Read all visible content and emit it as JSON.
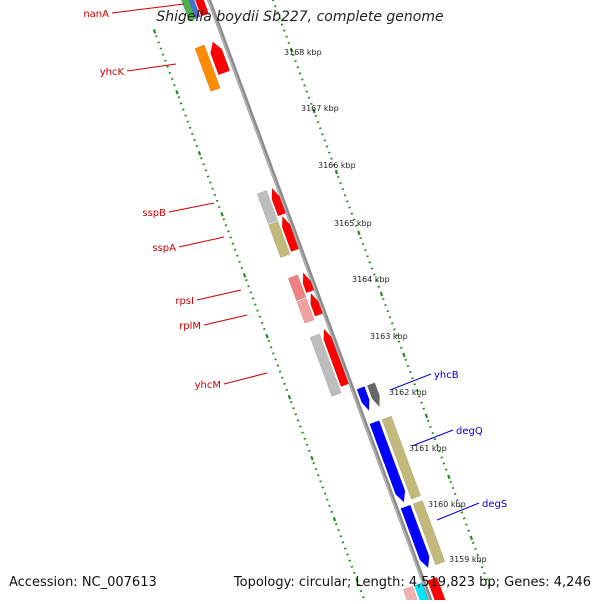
{
  "title": "Shigella boydii Sb227, complete genome",
  "accession": "Accession: NC_007613",
  "summary": "Topology: circular; Length: 4,519,823 bp; Genes: 4,246",
  "colors": {
    "axis": "#8c8c8c",
    "ticks": "#1e8c1e",
    "left_label": "#cc0000",
    "right_label": "#0000cc",
    "red": "#ff0000",
    "orange": "#ff8c00",
    "khaki": "#c2b97a",
    "grey": "#bdbdbd",
    "blue": "#0000ff",
    "darkgrey": "#666666",
    "pink": "#f08080"
  },
  "scale": {
    "unit": "kbp",
    "labels": [
      "3168 kbp",
      "3167 kbp",
      "3166 kbp",
      "3165 kbp",
      "3164 kbp",
      "3163 kbp",
      "3162 kbp",
      "3161 kbp",
      "3160 kbp",
      "3159 kbp"
    ]
  },
  "genes_left": [
    "nanA",
    "yhcK",
    "sspB",
    "sspA",
    "rpsI",
    "rplM",
    "yhcM"
  ],
  "genes_right": [
    "yhcB",
    "degQ",
    "degS"
  ]
}
